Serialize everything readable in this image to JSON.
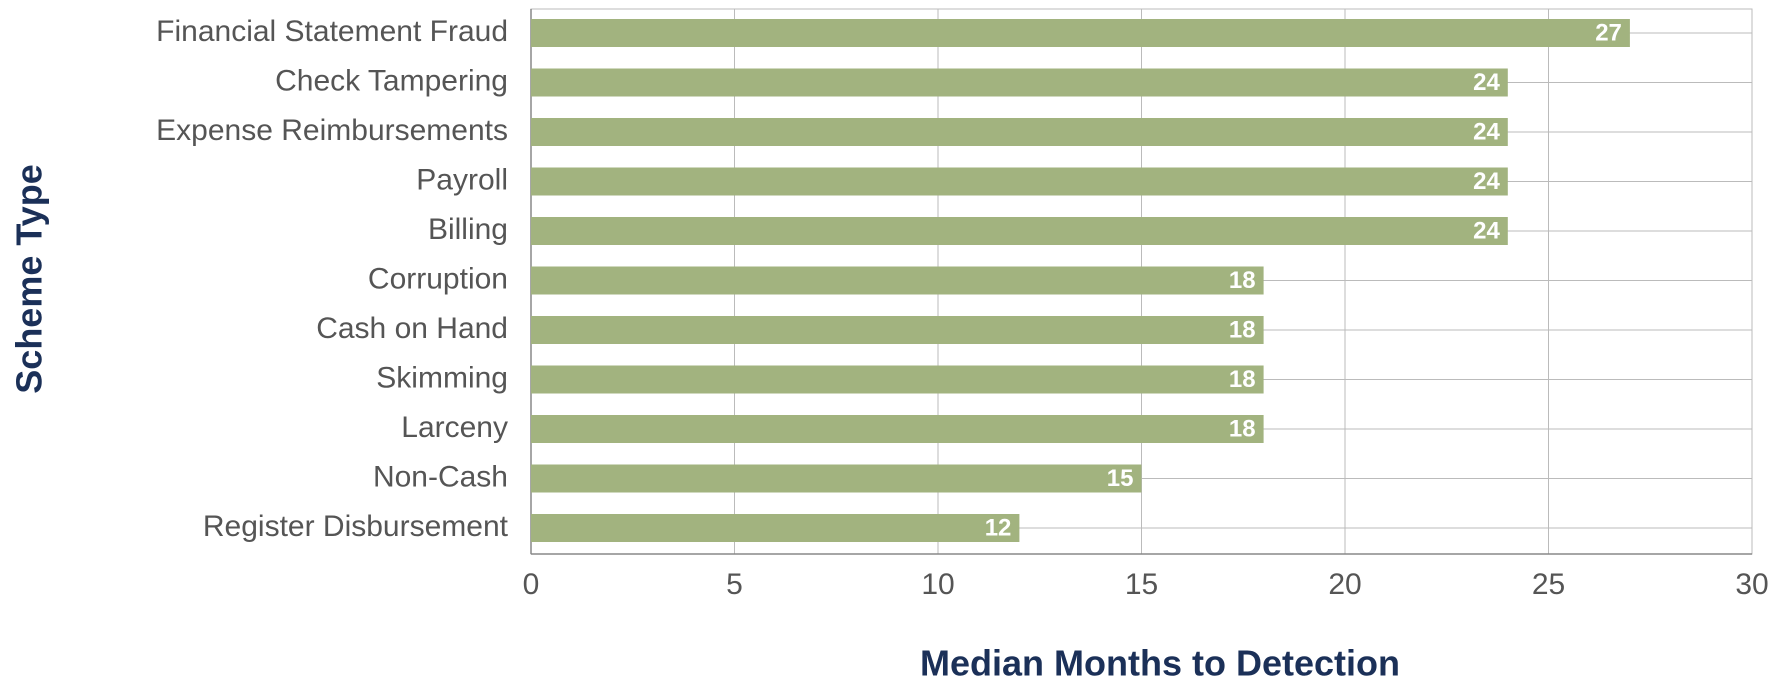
{
  "chart_data": {
    "type": "bar",
    "orientation": "horizontal",
    "x_label": "Median Months to Detection",
    "y_label": "Scheme Type",
    "categories": [
      "Financial Statement Fraud",
      "Check Tampering",
      "Expense Reimbursements",
      "Payroll",
      "Billing",
      "Corruption",
      "Cash on Hand",
      "Skimming",
      "Larceny",
      "Non-Cash",
      "Register Disbursement"
    ],
    "values": [
      27,
      24,
      24,
      24,
      24,
      18,
      18,
      18,
      18,
      15,
      12
    ],
    "color": "#a2b37f",
    "xlim": [
      0,
      30
    ],
    "xticks": [
      0,
      5,
      10,
      15,
      20,
      25,
      30
    ],
    "grid": true
  }
}
